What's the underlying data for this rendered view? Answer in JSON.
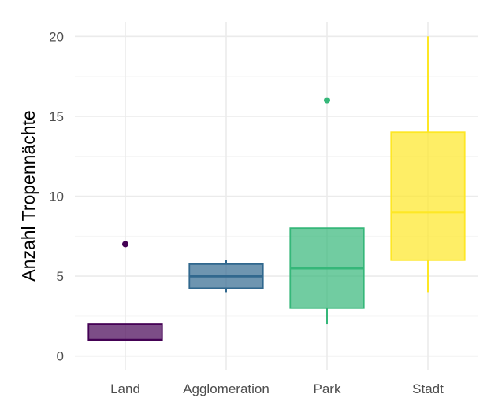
{
  "chart_data": {
    "type": "boxplot",
    "title": "",
    "xlabel": "",
    "ylabel": "Anzahl Tropennächte",
    "ylim": [
      -0.9,
      20.9
    ],
    "yticks": [
      0,
      5,
      10,
      15,
      20
    ],
    "grid": true,
    "legend": "none",
    "categories": [
      "Land",
      "Agglomeration",
      "Park",
      "Stadt"
    ],
    "boxes": [
      {
        "category": "Land",
        "min": 1,
        "q1": 1,
        "median": 1,
        "q3": 2,
        "max": 2,
        "outliers": [
          7
        ],
        "color": "#440154"
      },
      {
        "category": "Agglomeration",
        "min": 4,
        "q1": 4.25,
        "median": 5,
        "q3": 5.75,
        "max": 6,
        "outliers": [],
        "color": "#31688e"
      },
      {
        "category": "Park",
        "min": 2,
        "q1": 3,
        "median": 5.5,
        "q3": 8,
        "max": 8,
        "outliers": [
          16
        ],
        "color": "#35b779"
      },
      {
        "category": "Stadt",
        "min": 4,
        "q1": 6,
        "median": 9,
        "q3": 14,
        "max": 20,
        "outliers": [],
        "color": "#fde725"
      }
    ]
  }
}
